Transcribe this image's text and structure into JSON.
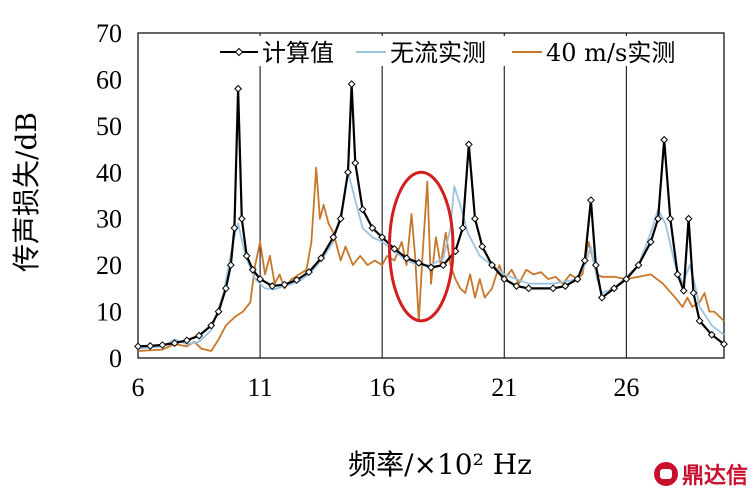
{
  "chart_data": {
    "type": "line",
    "title": "",
    "xlabel": "频率/×10² Hz",
    "ylabel": "传声损失/dB",
    "xlim": [
      6,
      30
    ],
    "ylim": [
      0,
      70
    ],
    "xticks": [
      6,
      11,
      16,
      21,
      26
    ],
    "yticks": [
      0,
      10,
      20,
      30,
      40,
      50,
      60,
      70
    ],
    "grid": "vertical",
    "legend_position": "top",
    "series": [
      {
        "name": "计算值",
        "color": "#000000",
        "marker": "diamond",
        "points": [
          [
            6,
            2.5
          ],
          [
            6.5,
            2.6
          ],
          [
            7,
            2.8
          ],
          [
            7.5,
            3.2
          ],
          [
            8,
            3.8
          ],
          [
            8.5,
            4.8
          ],
          [
            9,
            7
          ],
          [
            9.3,
            10
          ],
          [
            9.6,
            15
          ],
          [
            9.8,
            20
          ],
          [
            9.95,
            28
          ],
          [
            10.1,
            58
          ],
          [
            10.25,
            30
          ],
          [
            10.45,
            22
          ],
          [
            10.7,
            19
          ],
          [
            11,
            17
          ],
          [
            11.5,
            15.5
          ],
          [
            12,
            15.8
          ],
          [
            12.5,
            16.8
          ],
          [
            13,
            18.5
          ],
          [
            13.5,
            21.5
          ],
          [
            14,
            26
          ],
          [
            14.3,
            30
          ],
          [
            14.6,
            40
          ],
          [
            14.75,
            59
          ],
          [
            14.9,
            42
          ],
          [
            15.2,
            32
          ],
          [
            15.6,
            28
          ],
          [
            16,
            26
          ],
          [
            16.5,
            23.5
          ],
          [
            17,
            21.5
          ],
          [
            17.5,
            20.5
          ],
          [
            18,
            19.5
          ],
          [
            18.5,
            20
          ],
          [
            19,
            23
          ],
          [
            19.3,
            28
          ],
          [
            19.55,
            46
          ],
          [
            19.8,
            30
          ],
          [
            20.1,
            24
          ],
          [
            20.5,
            20
          ],
          [
            21,
            17
          ],
          [
            21.5,
            15.5
          ],
          [
            22,
            15
          ],
          [
            23,
            15
          ],
          [
            23.5,
            15.5
          ],
          [
            24,
            17
          ],
          [
            24.3,
            21
          ],
          [
            24.55,
            34
          ],
          [
            24.75,
            20
          ],
          [
            25,
            13
          ],
          [
            25.5,
            15
          ],
          [
            26,
            17
          ],
          [
            26.5,
            20
          ],
          [
            27,
            25
          ],
          [
            27.3,
            30
          ],
          [
            27.55,
            47
          ],
          [
            27.8,
            30
          ],
          [
            28.1,
            18
          ],
          [
            28.35,
            14.5
          ],
          [
            28.55,
            30
          ],
          [
            28.75,
            14
          ],
          [
            29,
            8
          ],
          [
            29.5,
            5
          ],
          [
            30,
            3
          ]
        ]
      },
      {
        "name": "无流实测",
        "color": "#9cc3e0",
        "marker": "none",
        "points": [
          [
            6,
            2
          ],
          [
            7,
            2.5
          ],
          [
            7.5,
            4
          ],
          [
            8,
            3
          ],
          [
            8.5,
            3.5
          ],
          [
            9,
            6
          ],
          [
            9.5,
            14
          ],
          [
            9.9,
            25
          ],
          [
            10.1,
            29
          ],
          [
            10.4,
            22
          ],
          [
            10.8,
            17
          ],
          [
            11.2,
            15
          ],
          [
            11.6,
            14.8
          ],
          [
            12,
            15.5
          ],
          [
            12.6,
            16.5
          ],
          [
            13,
            18
          ],
          [
            13.5,
            21
          ],
          [
            14,
            25
          ],
          [
            14.4,
            33
          ],
          [
            14.6,
            40
          ],
          [
            14.8,
            36
          ],
          [
            15.2,
            28
          ],
          [
            15.6,
            26
          ],
          [
            16,
            25
          ],
          [
            16.5,
            23
          ],
          [
            17,
            21
          ],
          [
            17.5,
            20
          ],
          [
            18,
            20
          ],
          [
            18.5,
            21.5
          ],
          [
            18.8,
            28
          ],
          [
            18.95,
            37
          ],
          [
            19.2,
            33
          ],
          [
            19.5,
            27
          ],
          [
            20,
            22
          ],
          [
            20.5,
            20
          ],
          [
            21,
            18
          ],
          [
            21.5,
            17
          ],
          [
            22,
            16
          ],
          [
            23,
            16
          ],
          [
            24,
            17
          ],
          [
            24.3,
            20
          ],
          [
            24.55,
            24
          ],
          [
            24.8,
            17
          ],
          [
            25,
            14
          ],
          [
            25.5,
            15
          ],
          [
            26,
            17.5
          ],
          [
            26.5,
            20
          ],
          [
            27,
            27
          ],
          [
            27.3,
            32
          ],
          [
            27.6,
            29
          ],
          [
            28,
            20
          ],
          [
            28.3,
            16
          ],
          [
            28.6,
            20
          ],
          [
            28.8,
            16
          ],
          [
            29,
            11
          ],
          [
            29.5,
            7
          ],
          [
            30,
            5
          ]
        ]
      },
      {
        "name": "40 m/s实测",
        "color": "#c8772a",
        "marker": "none",
        "points": [
          [
            6,
            1.5
          ],
          [
            7,
            1.8
          ],
          [
            7.5,
            3
          ],
          [
            8,
            2.5
          ],
          [
            8.3,
            3.5
          ],
          [
            8.6,
            2
          ],
          [
            9,
            1.5
          ],
          [
            9.3,
            4
          ],
          [
            9.6,
            7
          ],
          [
            10,
            9
          ],
          [
            10.3,
            10
          ],
          [
            10.6,
            12
          ],
          [
            10.8,
            20
          ],
          [
            11,
            25
          ],
          [
            11.2,
            18
          ],
          [
            11.4,
            22
          ],
          [
            11.6,
            16
          ],
          [
            11.8,
            18
          ],
          [
            12,
            15
          ],
          [
            12.3,
            17
          ],
          [
            12.6,
            18
          ],
          [
            12.9,
            19
          ],
          [
            13.1,
            25
          ],
          [
            13.3,
            41
          ],
          [
            13.45,
            30
          ],
          [
            13.6,
            33
          ],
          [
            13.8,
            29
          ],
          [
            14,
            27
          ],
          [
            14.3,
            21
          ],
          [
            14.5,
            24
          ],
          [
            14.8,
            20
          ],
          [
            15.1,
            22
          ],
          [
            15.4,
            20
          ],
          [
            15.7,
            21
          ],
          [
            16,
            20
          ],
          [
            16.2,
            22
          ],
          [
            16.5,
            21
          ],
          [
            16.8,
            25
          ],
          [
            17,
            20
          ],
          [
            17.2,
            31
          ],
          [
            17.35,
            22
          ],
          [
            17.5,
            8
          ],
          [
            17.65,
            22
          ],
          [
            17.85,
            38
          ],
          [
            18,
            16
          ],
          [
            18.2,
            26
          ],
          [
            18.4,
            20
          ],
          [
            18.6,
            27
          ],
          [
            18.8,
            20
          ],
          [
            19,
            17
          ],
          [
            19.2,
            15
          ],
          [
            19.4,
            14
          ],
          [
            19.6,
            18
          ],
          [
            19.8,
            13
          ],
          [
            20,
            17
          ],
          [
            20.2,
            13
          ],
          [
            20.5,
            15
          ],
          [
            20.8,
            20
          ],
          [
            21,
            17
          ],
          [
            21.3,
            19
          ],
          [
            21.6,
            16
          ],
          [
            21.9,
            19
          ],
          [
            22.2,
            18
          ],
          [
            22.5,
            18.5
          ],
          [
            22.8,
            17
          ],
          [
            23.1,
            17.5
          ],
          [
            23.4,
            16
          ],
          [
            23.7,
            18
          ],
          [
            24,
            17
          ],
          [
            24.2,
            18
          ],
          [
            24.45,
            25
          ],
          [
            24.6,
            22
          ],
          [
            24.8,
            18
          ],
          [
            25,
            17.5
          ],
          [
            25.5,
            17.5
          ],
          [
            26,
            17
          ],
          [
            26.5,
            17.5
          ],
          [
            27,
            18
          ],
          [
            27.5,
            16
          ],
          [
            28,
            13
          ],
          [
            28.3,
            11
          ],
          [
            28.5,
            13
          ],
          [
            28.7,
            11
          ],
          [
            29,
            12
          ],
          [
            29.2,
            14
          ],
          [
            29.4,
            10
          ],
          [
            29.6,
            10
          ],
          [
            30,
            8
          ]
        ]
      }
    ],
    "annotations": [
      {
        "type": "ellipse",
        "color": "#d21e1e",
        "center": [
          17.6,
          24
        ],
        "rx": 1.3,
        "ry": 16
      }
    ]
  },
  "watermark": {
    "text": "鼎达信",
    "color": "#c8102e",
    "icon": "logo-icon"
  }
}
